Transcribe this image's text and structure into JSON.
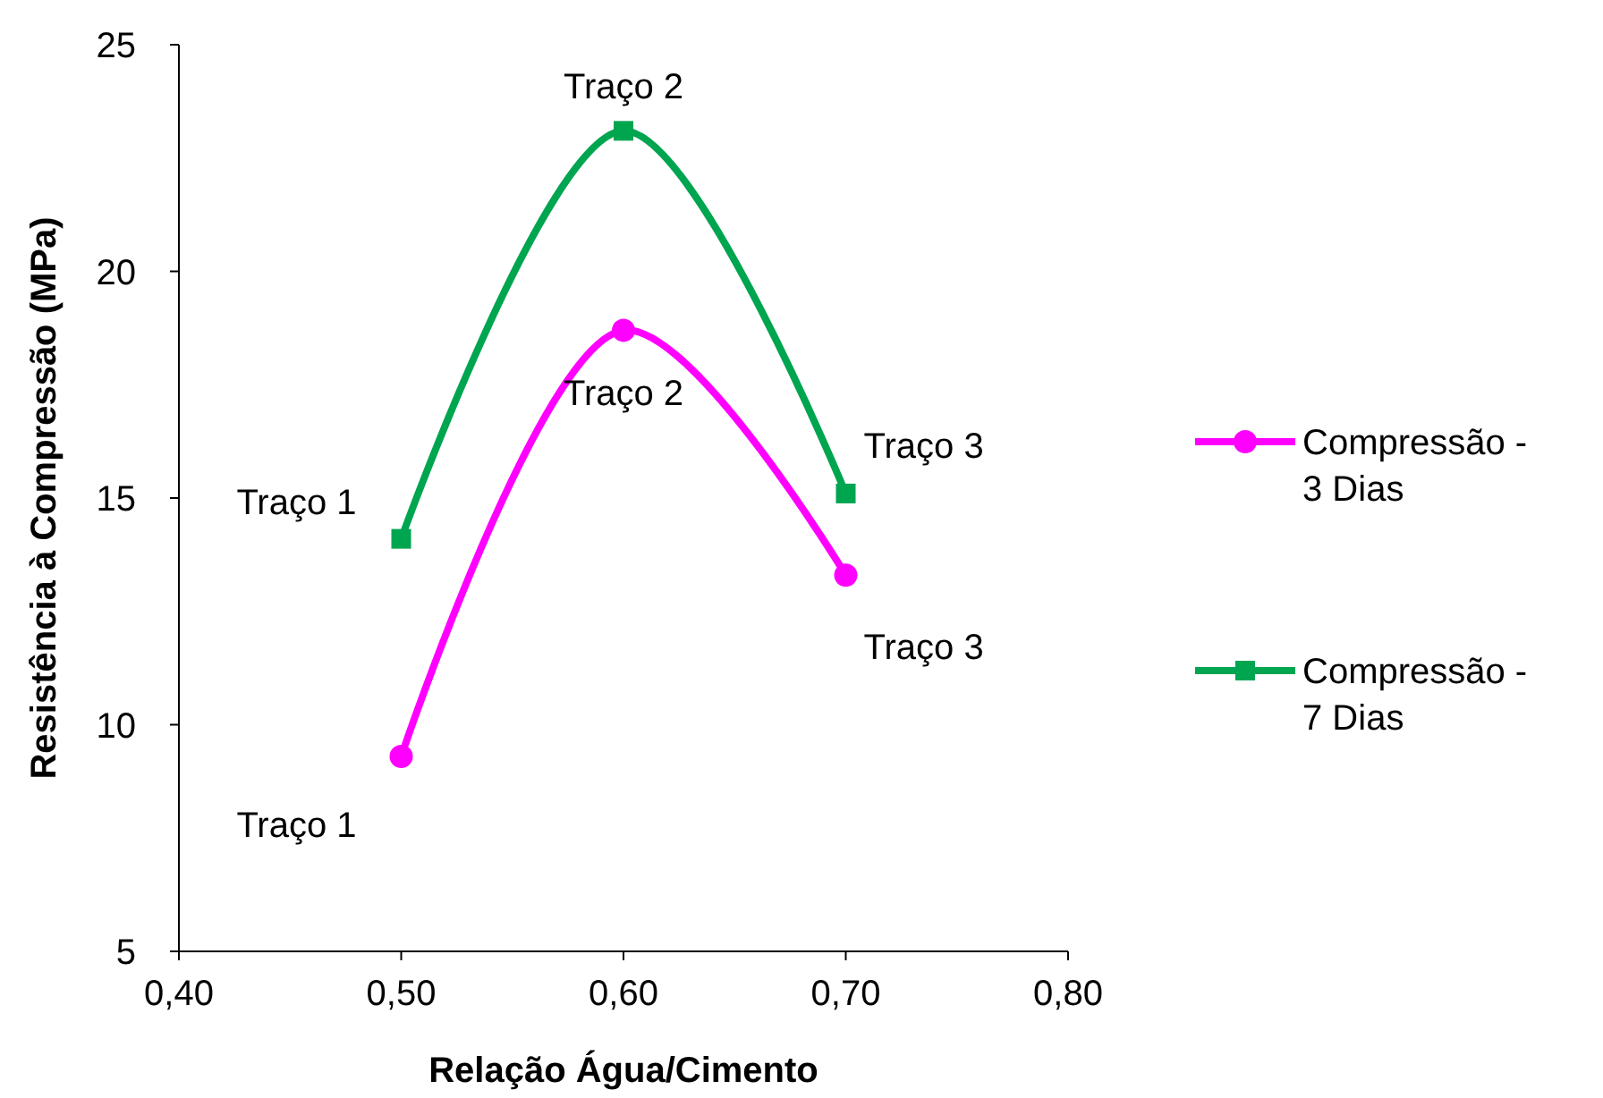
{
  "chart_data": {
    "type": "line",
    "xlabel": "Relação Água/Cimento",
    "ylabel": "Resistência à Compressão (MPa)",
    "x": [
      0.5,
      0.6,
      0.7
    ],
    "series": [
      {
        "name": "Compressão - 3 Dias",
        "color": "#ff00ff",
        "values": [
          9.3,
          18.7,
          13.3
        ],
        "marker": "circle"
      },
      {
        "name": "Compressão - 7 Dias",
        "color": "#00a550",
        "values": [
          14.1,
          23.1,
          15.1
        ],
        "marker": "square"
      }
    ],
    "xlim": [
      0.4,
      0.8
    ],
    "xticks": [
      {
        "value": 0.4,
        "label": "0,40"
      },
      {
        "value": 0.5,
        "label": "0,50"
      },
      {
        "value": 0.6,
        "label": "0,60"
      },
      {
        "value": 0.7,
        "label": "0,70"
      },
      {
        "value": 0.8,
        "label": "0,80"
      }
    ],
    "ylim": [
      5,
      25
    ],
    "yticks": [
      5,
      10,
      15,
      20,
      25
    ],
    "grid": false,
    "legend": "right",
    "line_style": "solid",
    "annotations": [
      {
        "text": "Traço 1",
        "x": 0.5,
        "y": 9.3
      },
      {
        "text": "Traço 2",
        "x": 0.6,
        "y": 18.7
      },
      {
        "text": "Traço 3",
        "x": 0.7,
        "y": 13.3
      },
      {
        "text": "Traço 1",
        "x": 0.5,
        "y": 14.1
      },
      {
        "text": "Traço 2",
        "x": 0.6,
        "y": 23.1
      },
      {
        "text": "Traço 3",
        "x": 0.7,
        "y": 15.1
      }
    ]
  }
}
